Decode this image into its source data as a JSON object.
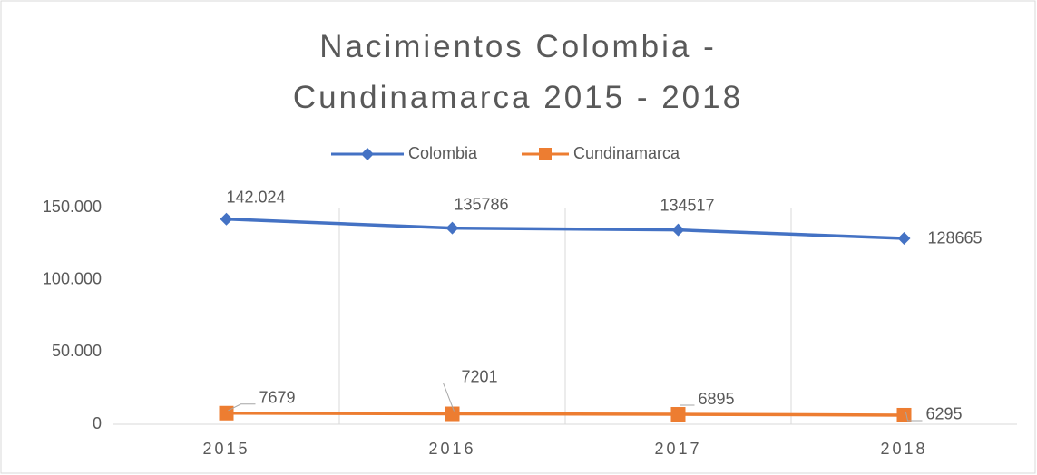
{
  "chart_data": {
    "type": "line",
    "title": "Nacimientos Colombia - Cundinamarca 2015 - 2018",
    "categories": [
      "2015",
      "2016",
      "2017",
      "2018"
    ],
    "series": [
      {
        "name": "Colombia",
        "color": "#4472c4",
        "values": [
          142024,
          135786,
          134517,
          128665
        ],
        "value_labels": [
          "142.024",
          "135786",
          "134517",
          "128665"
        ]
      },
      {
        "name": "Cundinamarca",
        "color": "#ed7d31",
        "values": [
          7679,
          7201,
          6895,
          6295
        ]
      }
    ],
    "ylim": [
      0,
      150000
    ],
    "yticks": [
      0,
      {
        "value": 50000,
        "label": "50.000"
      },
      {
        "value": 100000,
        "label": "100.000"
      },
      {
        "value": 150000,
        "label": "150.000"
      }
    ],
    "grid": "x",
    "legend": "top"
  }
}
